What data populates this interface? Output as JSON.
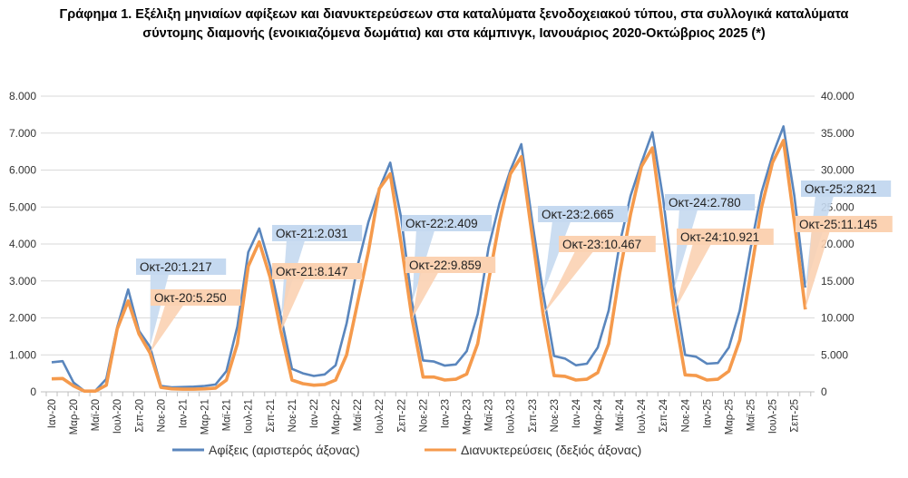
{
  "chart_data": {
    "type": "line",
    "title_line1": "Γράφημα 1. Εξέλιξη μηνιαίων αφίξεων και διανυκτερεύσεων στα καταλύματα ξενοδοχειακού τύπου, στα συλλογικά καταλύματα",
    "title_line2": "σύντομης διαμονής (ενοικιαζόμενα δωμάτια) και στα κάμπινγκ, Ιανουάριος 2020-Οκτώβριος 2025 (*)",
    "x_tick_labels": [
      "Ιαν-20",
      "Μαρ-20",
      "Μαϊ-20",
      "Ιουλ-20",
      "Σεπ-20",
      "Νοε-20",
      "Ιαν-21",
      "Μαρ-21",
      "Μαϊ-21",
      "Ιουλ-21",
      "Σεπ-21",
      "Νοε-21",
      "Ιαν-22",
      "Μαρ-22",
      "Μαϊ-22",
      "Ιουλ-22",
      "Σεπ-22",
      "Νοε-22",
      "Ιαν-23",
      "Μαρ-23",
      "Μαϊ-23",
      "Ιουλ-23",
      "Σεπ-23",
      "Νοε-23",
      "Ιαν-24",
      "Μαρ-24",
      "Μαϊ-24",
      "Ιουλ-24",
      "Σεπ-24",
      "Νοε-24",
      "Ιαν-25",
      "Μαρ-25",
      "Μαϊ-25",
      "Ιουλ-25",
      "Σεπ-25"
    ],
    "x_range": [
      "Ιαν-20",
      "Οκτ-25"
    ],
    "y_left": {
      "range": [
        0,
        8000
      ],
      "ticks": [
        "0",
        "1.000",
        "2.000",
        "3.000",
        "4.000",
        "5.000",
        "6.000",
        "7.000",
        "8.000"
      ]
    },
    "y_right": {
      "range": [
        0,
        40000
      ],
      "ticks": [
        "0",
        "5.000",
        "10.000",
        "15.000",
        "20.000",
        "25.000",
        "30.000",
        "35.000",
        "40.000"
      ]
    },
    "grid": true,
    "legend_position": "bottom",
    "series": [
      {
        "name": "Αφίξεις (αριστερός άξονας)",
        "axis": "left",
        "color": "#5a86bd",
        "values": [
          800,
          830,
          250,
          20,
          30,
          350,
          1750,
          2770,
          1650,
          1217,
          160,
          120,
          130,
          140,
          160,
          200,
          560,
          1770,
          3780,
          4420,
          3400,
          2031,
          620,
          500,
          430,
          470,
          720,
          1850,
          3400,
          4600,
          5500,
          6200,
          4700,
          2409,
          850,
          820,
          710,
          740,
          1100,
          2100,
          3900,
          5100,
          6000,
          6700,
          4600,
          2665,
          970,
          900,
          720,
          760,
          1200,
          2200,
          4000,
          5300,
          6200,
          7020,
          5200,
          2780,
          1000,
          950,
          760,
          780,
          1200,
          2200,
          3900,
          5400,
          6400,
          7180,
          5300,
          2821
        ]
      },
      {
        "name": "Διανυκτερεύσεις (δεξιός άξονας)",
        "axis": "right",
        "color": "#f59a4c",
        "values": [
          1750,
          1800,
          800,
          100,
          100,
          900,
          8500,
          12300,
          7800,
          5250,
          600,
          400,
          350,
          350,
          400,
          500,
          1600,
          6500,
          17000,
          20300,
          15500,
          8147,
          1600,
          1100,
          900,
          1000,
          1600,
          5000,
          12000,
          19000,
          27500,
          29500,
          20000,
          9859,
          2000,
          2000,
          1600,
          1700,
          2400,
          6500,
          15000,
          23000,
          29500,
          31800,
          21000,
          10467,
          2200,
          2100,
          1600,
          1700,
          2600,
          6500,
          16000,
          24000,
          30500,
          33000,
          22000,
          10921,
          2300,
          2200,
          1600,
          1700,
          2800,
          7000,
          16000,
          25000,
          31000,
          34000,
          23000,
          11145
        ]
      }
    ],
    "annotations": [
      {
        "series": 0,
        "index": 9,
        "text": "Οκτ-20:1.217"
      },
      {
        "series": 1,
        "index": 9,
        "text": "Οκτ-20:5.250"
      },
      {
        "series": 0,
        "index": 21,
        "text": "Οκτ-21:2.031"
      },
      {
        "series": 1,
        "index": 21,
        "text": "Οκτ-21:8.147"
      },
      {
        "series": 0,
        "index": 33,
        "text": "Οκτ-22:2.409"
      },
      {
        "series": 1,
        "index": 33,
        "text": "Οκτ-22:9.859"
      },
      {
        "series": 0,
        "index": 45,
        "text": "Οκτ-23:2.665"
      },
      {
        "series": 1,
        "index": 45,
        "text": "Οκτ-23:10.467"
      },
      {
        "series": 0,
        "index": 57,
        "text": "Οκτ-24:2.780"
      },
      {
        "series": 1,
        "index": 57,
        "text": "Οκτ-24:10.921"
      },
      {
        "series": 0,
        "index": 69,
        "text": "Οκτ-25:2.821"
      },
      {
        "series": 1,
        "index": 69,
        "text": "Οκτ-25:11.145"
      }
    ],
    "annotation_colors": {
      "blue_box": "#c5d9f0",
      "orange_box": "#fbd2b2"
    }
  }
}
